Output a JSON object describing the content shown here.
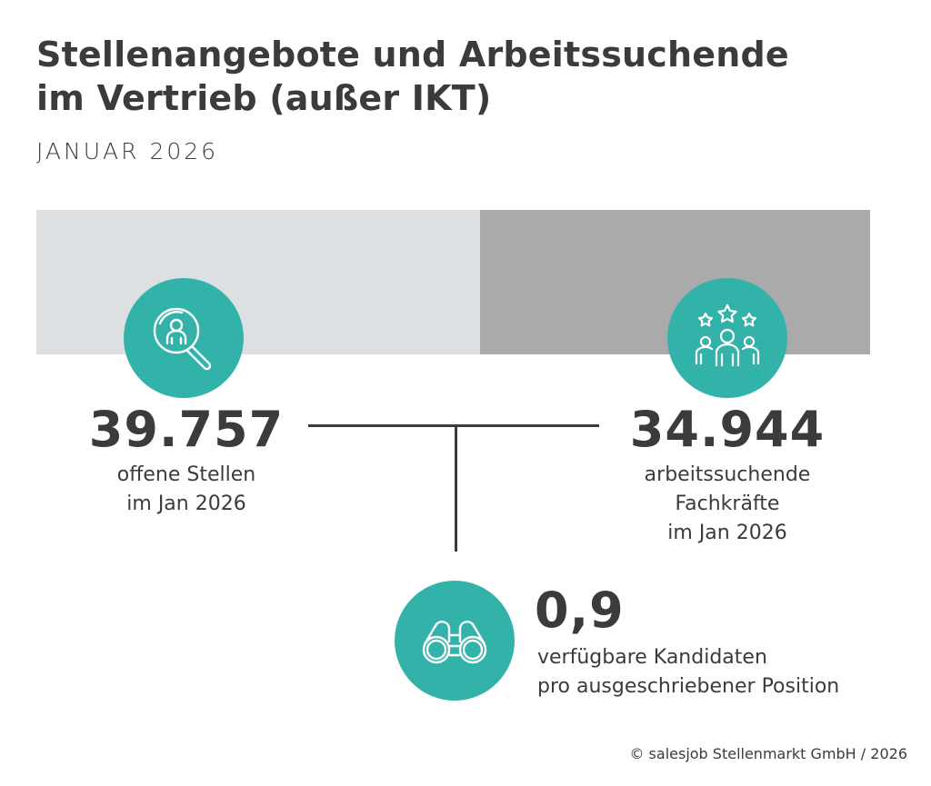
{
  "header": {
    "title_line1": "Stellenangebote und Arbeitssuchende",
    "title_line2": "im Vertrieb (außer IKT)",
    "subtitle": "JANUAR 2026"
  },
  "left": {
    "icon": "magnifier-person-icon",
    "value": "39.757",
    "label_line1": "offene Stellen",
    "label_line2": "im Jan 2026"
  },
  "right": {
    "icon": "team-stars-icon",
    "value": "34.944",
    "label_line1": "arbeitssuchende",
    "label_line2": "Fachkräfte",
    "label_line3": "im Jan 2026"
  },
  "ratio": {
    "icon": "binoculars-icon",
    "value": "0,9",
    "label_line1": "verfügbare Kandidaten",
    "label_line2": "pro ausgeschriebener Position"
  },
  "footer": "© salesjob Stellenmarkt GmbH / 2026",
  "colors": {
    "accent": "#33b2aa",
    "open_positions": "#dde0e3",
    "job_seekers": "#aaaaaa",
    "text": "#3a3b3d"
  },
  "chart_data": {
    "type": "bar",
    "orientation": "horizontal-stacked",
    "title": "Stellenangebote und Arbeitssuchende im Vertrieb (außer IKT)",
    "subtitle": "JANUAR 2026",
    "categories": [
      "offene Stellen",
      "arbeitssuchende Fachkräfte"
    ],
    "values": [
      39757,
      34944
    ],
    "colors": [
      "#dde0e3",
      "#aaaaaa"
    ],
    "annotations": [
      "39.757 offene Stellen im Jan 2026",
      "34.944 arbeitssuchende Fachkräfte im Jan 2026",
      "0,9 verfügbare Kandidaten pro ausgeschriebener Position"
    ],
    "ratio": 0.9,
    "legend": "none",
    "grid": false
  }
}
